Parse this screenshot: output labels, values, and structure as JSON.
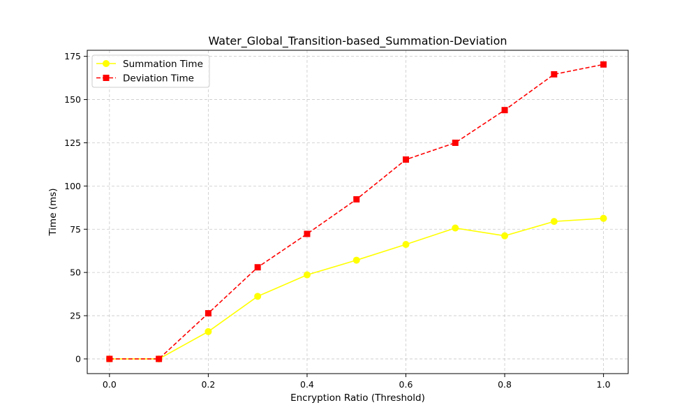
{
  "chart_data": {
    "type": "line",
    "title": "Water_Global_Transition-based_Summation-Deviation",
    "xlabel": "Encryption Ratio (Threshold)",
    "ylabel": "Time (ms)",
    "x": [
      0.0,
      0.1,
      0.2,
      0.3,
      0.4,
      0.5,
      0.6,
      0.7,
      0.8,
      0.9,
      1.0
    ],
    "xlim": [
      -0.045,
      1.05
    ],
    "ylim": [
      -8.5,
      178.5
    ],
    "xticks": [
      0.0,
      0.2,
      0.4,
      0.6,
      0.8,
      1.0
    ],
    "xtick_labels": [
      "0.0",
      "0.2",
      "0.4",
      "0.6",
      "0.8",
      "1.0"
    ],
    "yticks": [
      0,
      25,
      50,
      75,
      100,
      125,
      150,
      175
    ],
    "ytick_labels": [
      "0",
      "25",
      "50",
      "75",
      "100",
      "125",
      "150",
      "175"
    ],
    "grid": true,
    "legend_position": "upper-left",
    "series": [
      {
        "name": "Summation Time",
        "color": "#ffff00",
        "line_style": "solid",
        "marker": "circle",
        "values": [
          0,
          0,
          15.8,
          36.2,
          48.6,
          57.1,
          66.2,
          75.7,
          71.2,
          79.5,
          81.3
        ]
      },
      {
        "name": "Deviation Time",
        "color": "#ff0000",
        "line_style": "dashed",
        "marker": "square",
        "values": [
          0,
          0,
          26.4,
          53.0,
          72.3,
          92.3,
          115.3,
          125.0,
          143.9,
          164.6,
          170.3
        ]
      }
    ]
  }
}
